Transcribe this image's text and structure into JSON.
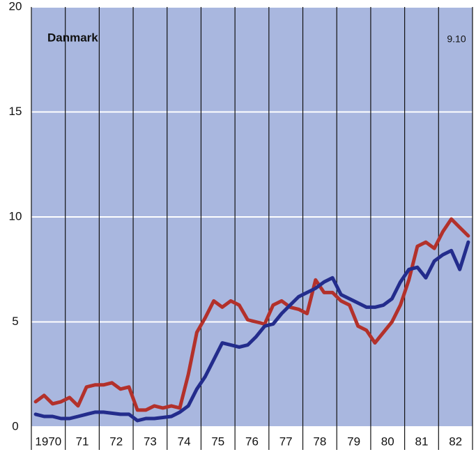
{
  "chart_data": {
    "type": "line",
    "title": "Danmark",
    "annotation": "9.10",
    "categories": [
      "1970",
      null,
      null,
      null,
      "71",
      null,
      null,
      null,
      "72",
      null,
      null,
      null,
      "73",
      null,
      null,
      null,
      "74",
      null,
      null,
      null,
      "75",
      null,
      null,
      null,
      "76",
      null,
      null,
      null,
      "77",
      null,
      null,
      null,
      "78",
      null,
      null,
      null,
      "79",
      null,
      null,
      null,
      "80",
      null,
      null,
      null,
      "81",
      null,
      null,
      null,
      "82",
      null,
      null,
      null
    ],
    "series": [
      {
        "color": "#b3312b",
        "values": [
          1.2,
          1.5,
          1.1,
          1.2,
          1.4,
          1.0,
          1.9,
          2.0,
          2.0,
          2.1,
          1.8,
          1.9,
          0.8,
          0.8,
          1.0,
          0.9,
          1.0,
          0.9,
          2.5,
          4.5,
          5.2,
          6.0,
          5.7,
          6.0,
          5.8,
          5.1,
          5.0,
          4.9,
          5.8,
          6.0,
          5.7,
          5.6,
          5.4,
          7.0,
          6.4,
          6.4,
          6.0,
          5.8,
          4.8,
          4.6,
          4.0,
          4.5,
          5.0,
          5.8,
          7.0,
          8.6,
          8.8,
          8.5,
          9.3,
          9.9,
          9.5,
          9.1
        ]
      },
      {
        "color": "#232c8c",
        "values": [
          0.6,
          0.5,
          0.5,
          0.4,
          0.4,
          0.5,
          0.6,
          0.7,
          0.7,
          0.65,
          0.6,
          0.6,
          0.3,
          0.4,
          0.4,
          0.45,
          0.5,
          0.7,
          1.0,
          1.8,
          2.4,
          3.2,
          4.0,
          3.9,
          3.8,
          3.9,
          4.3,
          4.8,
          4.9,
          5.4,
          5.8,
          6.2,
          6.4,
          6.6,
          6.9,
          7.1,
          6.3,
          6.1,
          5.9,
          5.7,
          5.7,
          5.8,
          6.1,
          6.9,
          7.5,
          7.6,
          7.1,
          7.9,
          8.2,
          8.4,
          7.5,
          8.8
        ]
      }
    ],
    "ylim": [
      0,
      20
    ],
    "yticks": [
      0,
      5,
      10,
      15,
      20
    ],
    "grid": true
  }
}
